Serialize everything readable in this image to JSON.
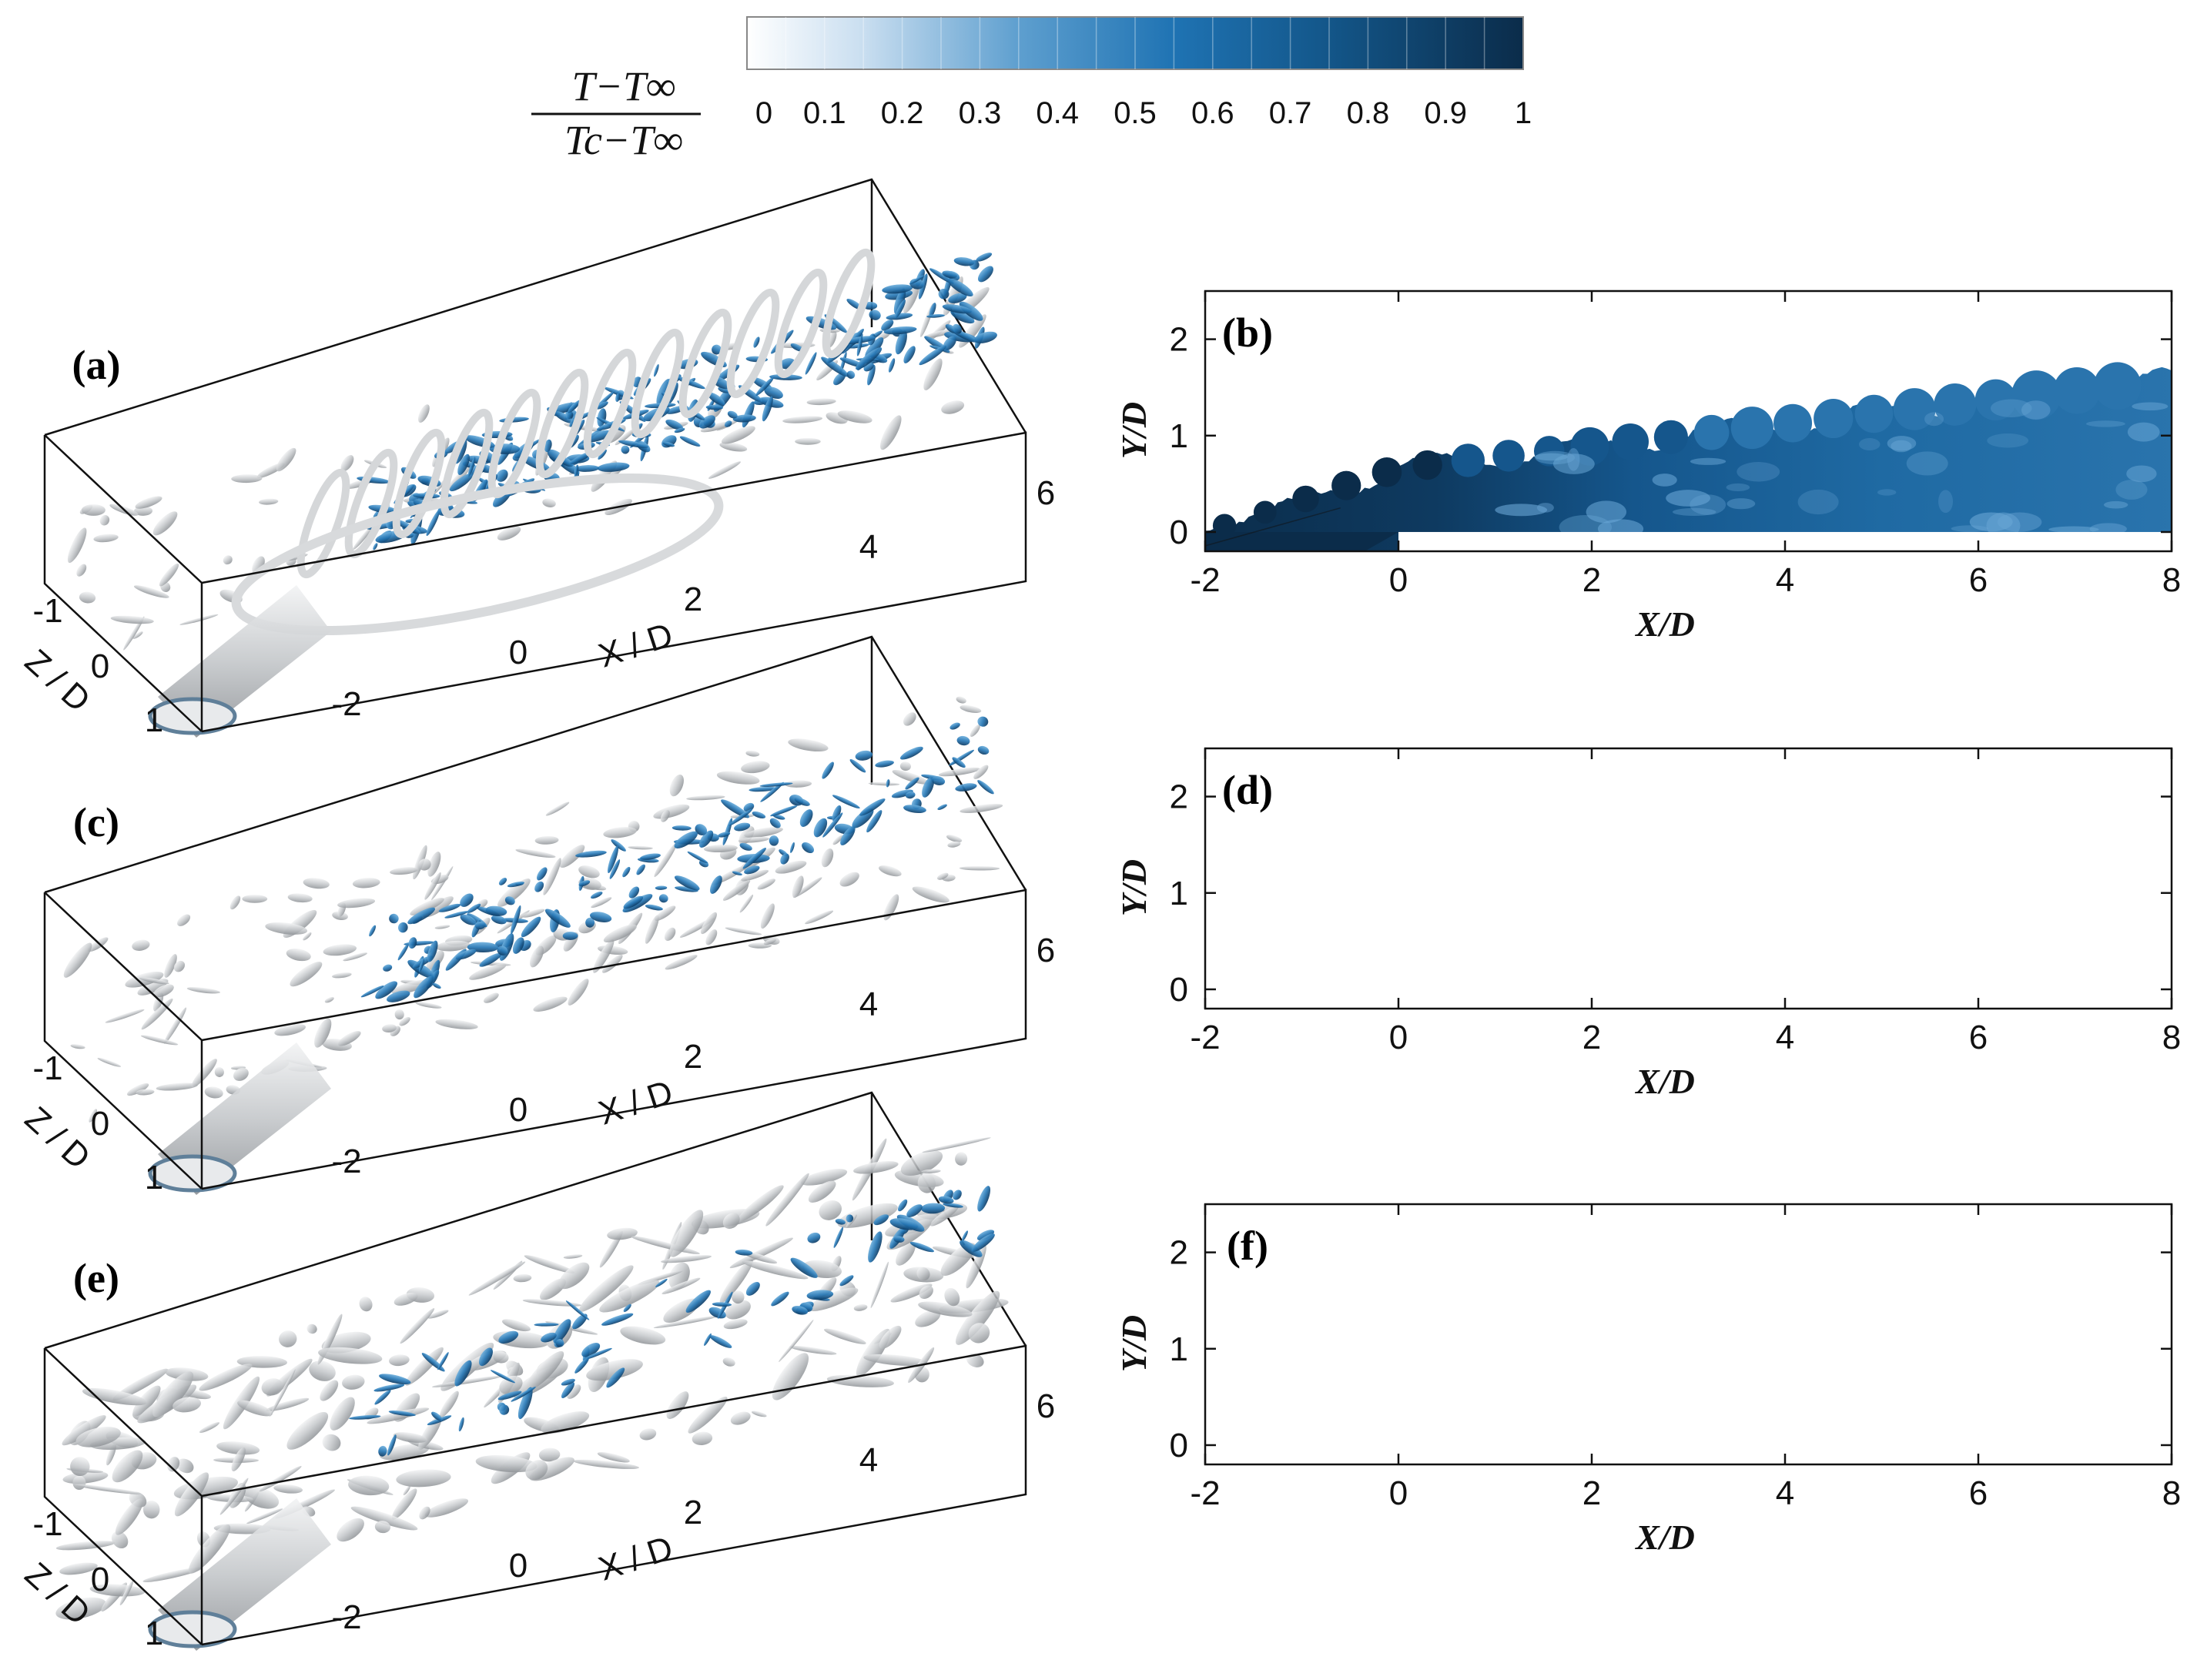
{
  "colorbar": {
    "label_numerator": "T−T∞",
    "label_denominator": "Tc−T∞",
    "ticks": [
      "0",
      "0.1",
      "0.2",
      "0.3",
      "0.4",
      "0.5",
      "0.6",
      "0.7",
      "0.8",
      "0.9",
      "1"
    ],
    "range": [
      0,
      1
    ],
    "color_low": "#ffffff",
    "color_high": "#0b2c4a"
  },
  "colors": {
    "jet_dark": "#0b2c4a",
    "jet_mid": "#1f6aa3",
    "jet_light": "#5b9dcc",
    "vortex_grey": "#c9cbcd",
    "vortex_blue": "#2b7bb8"
  },
  "panels_3d": [
    {
      "label": "(a)",
      "x_ticks": [
        "-2",
        "0",
        "2",
        "4",
        "6"
      ],
      "z_ticks": [
        "-1",
        "0",
        "1"
      ],
      "xlabel": "X / D",
      "zlabel": "Z / D"
    },
    {
      "label": "(c)",
      "x_ticks": [
        "-2",
        "0",
        "2",
        "4",
        "6"
      ],
      "z_ticks": [
        "-1",
        "0",
        "1"
      ],
      "xlabel": "X / D",
      "zlabel": "Z / D"
    },
    {
      "label": "(e)",
      "x_ticks": [
        "-2",
        "0",
        "2",
        "4",
        "6"
      ],
      "z_ticks": [
        "-1",
        "0",
        "1"
      ],
      "xlabel": "X / D",
      "zlabel": "Z / D"
    }
  ],
  "chart_data": [
    {
      "type": "heatmap",
      "label": "(b)",
      "xlabel": "X/D",
      "ylabel": "Y/D",
      "xlim": [
        -2,
        8
      ],
      "ylim": [
        -0.2,
        2.5
      ],
      "x_ticks": [
        "-2",
        "0",
        "2",
        "4",
        "6",
        "8"
      ],
      "y_ticks": [
        "0",
        "1",
        "2"
      ]
    },
    {
      "type": "heatmap",
      "label": "(d)",
      "xlabel": "X/D",
      "ylabel": "Y/D",
      "xlim": [
        -2,
        8
      ],
      "ylim": [
        -0.2,
        2.5
      ],
      "x_ticks": [
        "-2",
        "0",
        "2",
        "4",
        "6",
        "8"
      ],
      "y_ticks": [
        "0",
        "1",
        "2"
      ]
    },
    {
      "type": "heatmap",
      "label": "(f)",
      "xlabel": "X/D",
      "ylabel": "Y/D",
      "xlim": [
        -2,
        8
      ],
      "ylim": [
        -0.2,
        2.5
      ],
      "x_ticks": [
        "-2",
        "0",
        "2",
        "4",
        "6",
        "8"
      ],
      "y_ticks": [
        "0",
        "1",
        "2"
      ]
    }
  ]
}
